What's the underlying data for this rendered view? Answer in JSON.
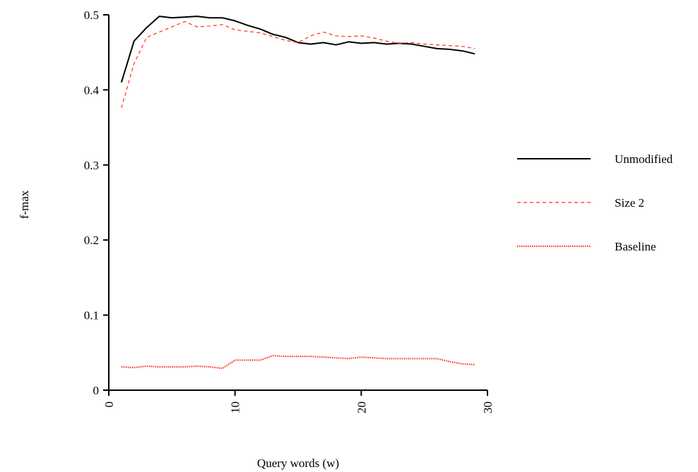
{
  "chart_data": {
    "type": "line",
    "title": "",
    "xlabel": "Query words (w)",
    "ylabel": "f-max",
    "xlim": [
      0,
      30
    ],
    "ylim": [
      0,
      0.5
    ],
    "x_ticks": [
      0,
      10,
      20,
      30
    ],
    "x_tick_labels": [
      "0",
      "10",
      "20",
      "30"
    ],
    "y_ticks": [
      0,
      0.1,
      0.2,
      0.3,
      0.4,
      0.5
    ],
    "y_tick_labels": [
      "0",
      "0.1",
      "0.2",
      "0.3",
      "0.4",
      "0.5"
    ],
    "grid": false,
    "legend_position": "right",
    "x": [
      1,
      2,
      3,
      4,
      5,
      6,
      7,
      8,
      9,
      10,
      11,
      12,
      13,
      14,
      15,
      16,
      17,
      18,
      19,
      20,
      21,
      22,
      23,
      24,
      25,
      26,
      27,
      28,
      29
    ],
    "series": [
      {
        "name": "Unmodified",
        "color": "#000000",
        "line_style": "solid",
        "values": [
          0.41,
          0.465,
          0.483,
          0.498,
          0.496,
          0.497,
          0.498,
          0.496,
          0.496,
          0.492,
          0.486,
          0.481,
          0.474,
          0.47,
          0.463,
          0.461,
          0.463,
          0.46,
          0.464,
          0.462,
          0.463,
          0.461,
          0.462,
          0.461,
          0.458,
          0.455,
          0.454,
          0.452,
          0.448
        ]
      },
      {
        "name": "Size 2",
        "color": "#ff2d1a",
        "line_style": "dashed",
        "values": [
          0.376,
          0.435,
          0.47,
          0.477,
          0.484,
          0.491,
          0.484,
          0.485,
          0.487,
          0.48,
          0.478,
          0.476,
          0.471,
          0.466,
          0.463,
          0.472,
          0.477,
          0.472,
          0.471,
          0.472,
          0.469,
          0.465,
          0.462,
          0.463,
          0.461,
          0.46,
          0.459,
          0.458,
          0.455
        ]
      },
      {
        "name": "Baseline",
        "color": "#ff2d1a",
        "line_style": "dotted",
        "values": [
          0.031,
          0.03,
          0.032,
          0.031,
          0.031,
          0.031,
          0.032,
          0.031,
          0.029,
          0.04,
          0.04,
          0.04,
          0.046,
          0.045,
          0.045,
          0.045,
          0.044,
          0.043,
          0.042,
          0.044,
          0.043,
          0.042,
          0.042,
          0.042,
          0.042,
          0.042,
          0.038,
          0.035,
          0.034
        ]
      }
    ]
  }
}
